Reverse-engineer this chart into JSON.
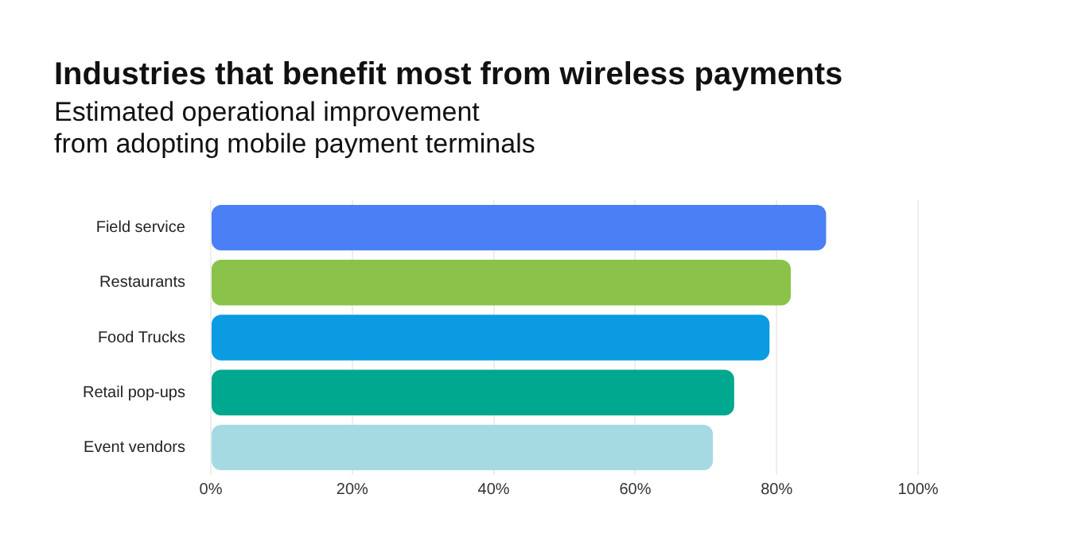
{
  "chart_data": {
    "type": "bar",
    "orientation": "horizontal",
    "title": "Industries that benefit most from wireless payments",
    "subtitle": "Estimated operational improvement\nfrom adopting mobile payment terminals",
    "categories": [
      "Field service",
      "Restaurants",
      "Food Trucks",
      "Retail pop-ups",
      "Event vendors"
    ],
    "values": [
      87,
      82,
      79,
      74,
      71
    ],
    "colors": [
      "#4a7ff5",
      "#8bc34a",
      "#0a9be3",
      "#00a88f",
      "#a6dae3"
    ],
    "xlim": [
      0,
      100
    ],
    "xticks": [
      {
        "value": 0,
        "label": "0%"
      },
      {
        "value": 20,
        "label": "20%"
      },
      {
        "value": 40,
        "label": "40%"
      },
      {
        "value": 60,
        "label": "60%"
      },
      {
        "value": 80,
        "label": "80%"
      },
      {
        "value": 100,
        "label": "100%"
      }
    ],
    "grid": "x",
    "legend": false
  }
}
